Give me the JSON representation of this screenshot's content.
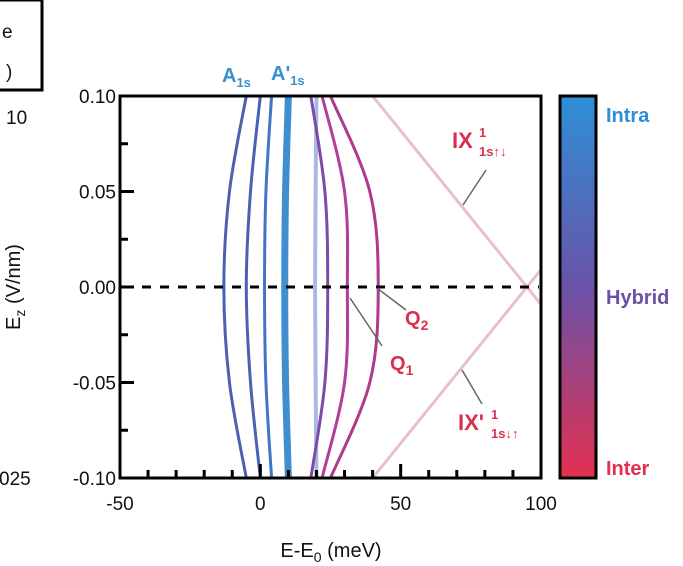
{
  "chart_data": {
    "type": "line",
    "xlabel": "E-E",
    "xlabel_sub": "0",
    "xlabel_unit": " (meV)",
    "ylabel": "E",
    "ylabel_sub": "z",
    "ylabel_unit": " (V/nm)",
    "xlim": [
      -50,
      100
    ],
    "ylim": [
      -0.1,
      0.1
    ],
    "xticks": [
      -50,
      0,
      50,
      100
    ],
    "xtick_labels": [
      "-50",
      "0",
      "50",
      "100"
    ],
    "yticks": [
      -0.1,
      -0.05,
      0.0,
      0.05,
      0.1
    ],
    "ytick_labels": [
      "-0.10",
      "-0.05",
      "0.00",
      "0.05",
      "0.10"
    ],
    "zero_line": {
      "y": 0.0,
      "style": "dashed",
      "color": "#000000"
    },
    "colorbar": {
      "top_label": "Intra",
      "mid_label": "Hybrid",
      "bottom_label": "Inter",
      "top_color": "#2f8fd6",
      "mid_color": "#6a52a8",
      "bottom_color": "#e3304f"
    },
    "series": [
      {
        "color": "#4d5fb0",
        "width": 3,
        "y": [
          -0.1,
          -0.05,
          0,
          0.05,
          0.1
        ],
        "x": [
          -5,
          -11,
          -13,
          -11,
          -5
        ]
      },
      {
        "color": "#4a60b5",
        "width": 3,
        "y": [
          -0.1,
          -0.05,
          0,
          0.05,
          0.1
        ],
        "x": [
          0,
          -3.5,
          -5,
          -3.5,
          0
        ]
      },
      {
        "color": "#4075c4",
        "width": 3,
        "y": [
          -0.1,
          -0.05,
          0,
          0.05,
          0.1
        ],
        "x": [
          4,
          2,
          1.5,
          2,
          4
        ]
      },
      {
        "color": "#3e8ed0",
        "width": 7,
        "y": [
          -0.1,
          -0.05,
          0,
          0.05,
          0.1
        ],
        "x": [
          10,
          9,
          8.7,
          9,
          10
        ]
      },
      {
        "color": "#a9b9e6",
        "width": 4,
        "y": [
          -0.1,
          -0.05,
          0,
          0.05,
          0.1
        ],
        "x": [
          20,
          19.7,
          19.5,
          19.7,
          20
        ]
      },
      {
        "color": "#7d4aa8",
        "width": 3,
        "y": [
          -0.1,
          -0.05,
          0,
          0.05,
          0.1
        ],
        "x": [
          18,
          23,
          24,
          23,
          18
        ]
      },
      {
        "color": "#b13e98",
        "width": 3,
        "y": [
          -0.1,
          -0.05,
          0,
          0.05,
          0.1
        ],
        "x": [
          22,
          30,
          31,
          30,
          22
        ]
      },
      {
        "color": "#b03a8a",
        "width": 3,
        "y": [
          -0.1,
          -0.05,
          0,
          0.05,
          0.1
        ],
        "x": [
          25,
          39,
          42,
          39,
          25
        ]
      },
      {
        "color": "#e8bfd2",
        "width": 3,
        "y": [
          -0.1,
          0.1
        ],
        "x": [
          40,
          150
        ]
      },
      {
        "color": "#e8bfd2",
        "width": 3,
        "y": [
          -0.1,
          0.1
        ],
        "x": [
          150,
          40
        ]
      }
    ],
    "annotations": [
      {
        "main": "A",
        "sub": "1s",
        "color": "#3a8fd0"
      },
      {
        "main": "A'",
        "sub": "1s",
        "color": "#3a8fd0"
      },
      {
        "main": "Q",
        "sub": "2",
        "color": "#d9304f"
      },
      {
        "main": "Q",
        "sub": "1",
        "color": "#d9304f"
      },
      {
        "main": "IX",
        "sup": "1",
        "sub": "1s↑↓",
        "color": "#d9304f"
      },
      {
        "main": "IX'",
        "sup": "1",
        "sub": "1s↓↑",
        "color": "#d9304f"
      }
    ],
    "cropped_text": {
      "e_top": "e",
      "paren": ")",
      "ten": "10",
      "o25": "025"
    }
  }
}
